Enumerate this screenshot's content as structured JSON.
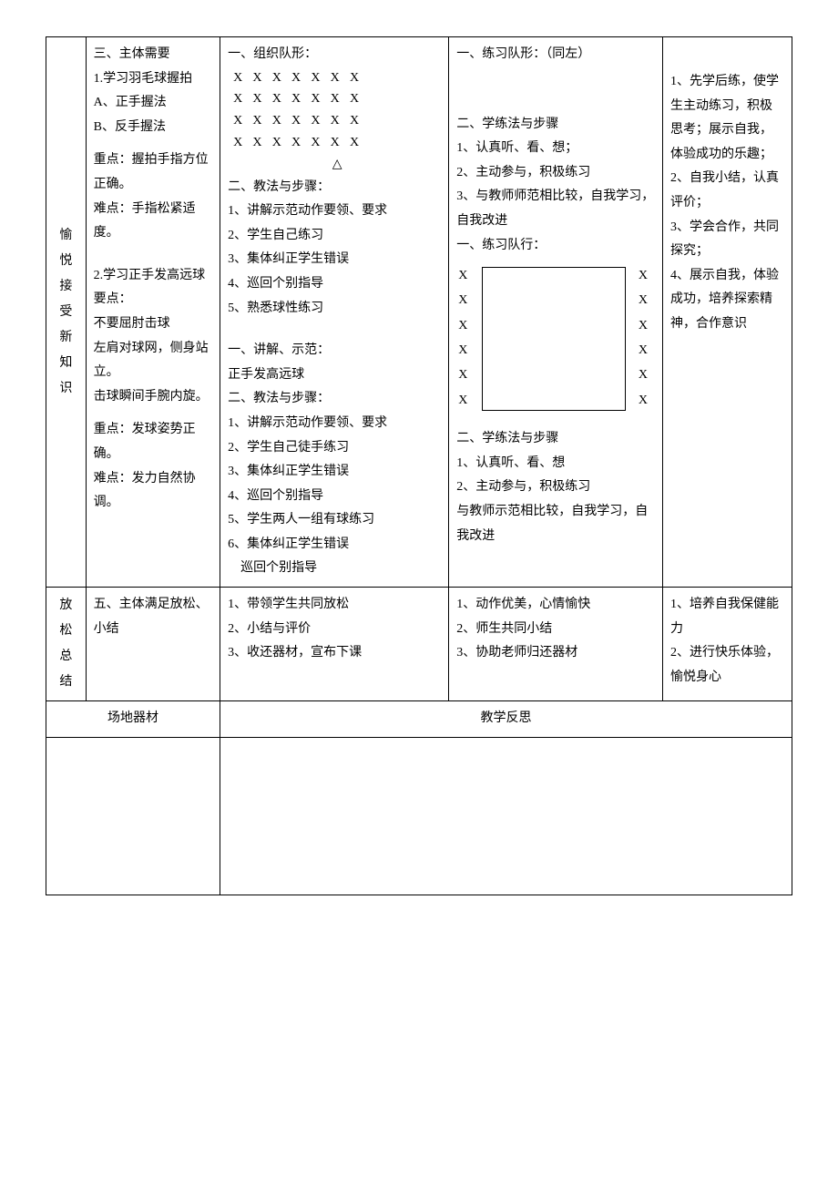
{
  "row1": {
    "stage": "愉悦接受新知识",
    "content": {
      "h3": "三、主体需要",
      "p1": "1.学习羽毛球握拍",
      "pA": "A、正手握法",
      "pB": "B、反手握法",
      "kpt1a": "重点：握拍手指方位正确。",
      "kpt1b": "难点：手指松紧适度。",
      "p2": "2.学习正手发高远球",
      "p2a": "要点：",
      "p2b": "不要屈肘击球",
      "p2c": "左肩对球网，侧身站立。",
      "p2d": "击球瞬间手腕内旋。",
      "kpt2a": "重点：发球姿势正确。",
      "kpt2b": "难点：发力自然协调。"
    },
    "method1": {
      "t1": "一、组织队形：",
      "xrow": "XXXXXXX",
      "tri": "△",
      "t2": "二、教法与步骤：",
      "s1": "1、讲解示范动作要领、要求",
      "s2": "2、学生自己练习",
      "s3": "3、集体纠正学生错误",
      "s4": "4、巡回个别指导",
      "s5": "5、熟悉球性练习",
      "t3": "一、讲解、示范：",
      "t3a": "正手发高远球",
      "t4": "二、教法与步骤：",
      "u1": "1、讲解示范动作要领、要求",
      "u2": "2、学生自己徒手练习",
      "u3": "3、集体纠正学生错误",
      "u4": "4、巡回个别指导",
      "u5": "5、学生两人一组有球练习",
      "u6": "6、集体纠正学生错误",
      "u6b": "巡回个别指导"
    },
    "method2": {
      "t1": "一、练习队形：（同左）",
      "t2": "二、学练法与步骤",
      "s1": "1、认真听、看、想；",
      "s2": "2、主动参与，积极练习",
      "s3": "3、与教师师范相比较，自我学习，自我改进",
      "t3": "一、练习队行：",
      "xchar": "X",
      "t4": "二、学练法与步骤",
      "u1": "1、认真听、看、想",
      "u2": "2、主动参与，积极练习",
      "u3": "与教师示范相比较，自我学习，自我改进"
    },
    "notes": {
      "n1": "1、先学后练，使学生主动练习，积极思考；展示自我，体验成功的乐趣；",
      "n2": "2、自我小结，认真评价；",
      "n3": "3、学会合作，共同探究；",
      "n4": "4、展示自我，体验成功，培养探索精神，合作意识"
    }
  },
  "row2": {
    "stage": "放松总结",
    "content": "五、主体满足放松、小结",
    "method1": {
      "s1": "1、带领学生共同放松",
      "s2": "2、小结与评价",
      "s3": "3、收还器材，宣布下课"
    },
    "method2": {
      "s1": "1、动作优美，心情愉快",
      "s2": "2、师生共同小结",
      "s3": "3、协助老师归还器材"
    },
    "notes": {
      "n1": "1、培养自我保健能力",
      "n2": "2、进行快乐体验，愉悦身心"
    }
  },
  "footer": {
    "left": "场地器材",
    "right": "教学反思"
  }
}
